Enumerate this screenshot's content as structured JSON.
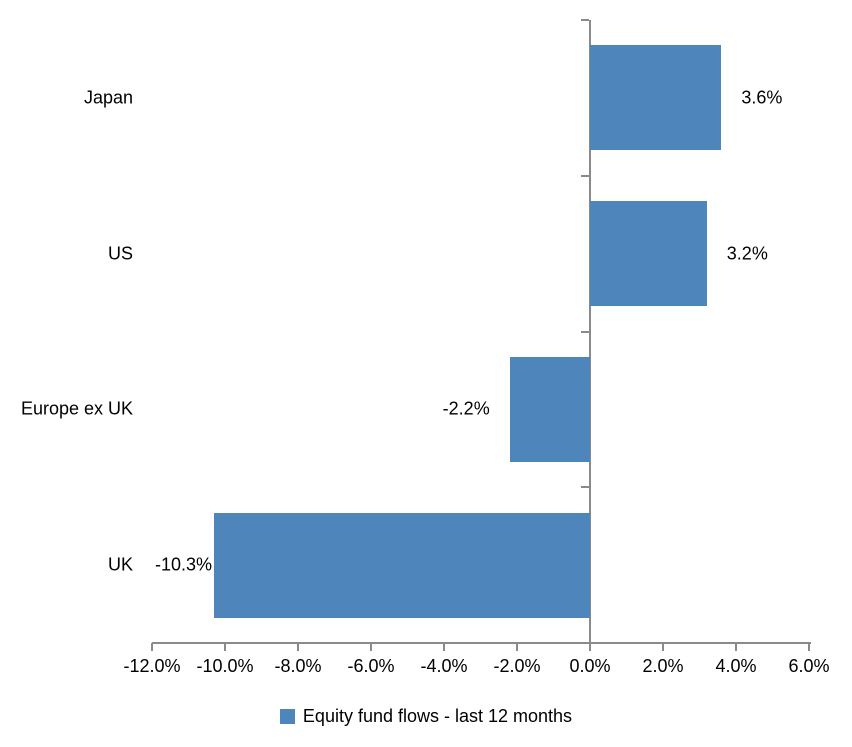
{
  "chart_data": {
    "type": "bar",
    "orientation": "horizontal",
    "title": "",
    "categories": [
      "Japan",
      "US",
      "Europe ex UK",
      "UK"
    ],
    "series": [
      {
        "name": "Equity fund flows - last 12 months",
        "values": [
          3.6,
          3.2,
          -2.2,
          -10.3
        ],
        "value_labels": [
          "3.6%",
          "3.2%",
          "-2.2%",
          "-10.3%"
        ]
      }
    ],
    "xlabel": "",
    "ylabel": "",
    "xlim": [
      -12,
      6
    ],
    "x_tick_step": 2,
    "x_tick_labels": [
      "-12.0%",
      "-10.0%",
      "-8.0%",
      "-6.0%",
      "-4.0%",
      "-2.0%",
      "0.0%",
      "2.0%",
      "4.0%",
      "6.0%"
    ],
    "grid": false,
    "legend_position": "bottom",
    "bar_color": "#4E86BC",
    "axis_color": "#8A8A8A",
    "text_color": "#000000"
  },
  "legend": {
    "label": "Equity fund flows - last 12 months",
    "swatch_color": "#4E86BC"
  }
}
